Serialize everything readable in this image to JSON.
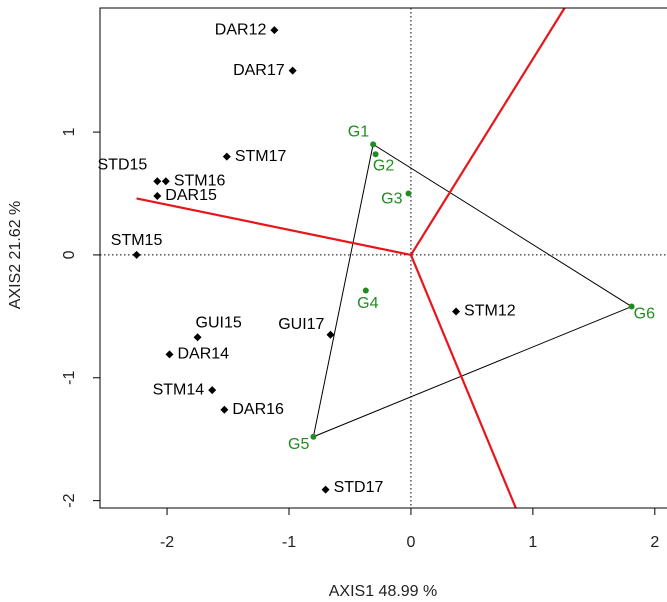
{
  "chart_data": {
    "type": "scatter",
    "xlabel": "AXIS1 48.99 %",
    "ylabel": "AXIS2 21.62 %",
    "xlim": [
      -2.55,
      2.1
    ],
    "ylim": [
      -2.06,
      2.01
    ],
    "xticks": [
      -2,
      -1,
      0,
      1,
      2
    ],
    "yticks": [
      -2,
      -1,
      0,
      1
    ],
    "series": [
      {
        "color": "#000000",
        "marker": "diamond",
        "labels": [
          "DAR12",
          "DAR17",
          "STM17",
          "STD15",
          "STM16",
          "DAR15",
          "STM15",
          "GUI15",
          "GUI17",
          "DAR14",
          "STM14",
          "DAR16",
          "STM12",
          "STD17"
        ],
        "x": [
          -1.12,
          -0.97,
          -1.51,
          -2.08,
          -2.01,
          -2.08,
          -2.25,
          -1.75,
          -0.66,
          -1.98,
          -1.63,
          -1.53,
          0.37,
          -0.7
        ],
        "values": [
          1.83,
          1.5,
          0.8,
          0.6,
          0.6,
          0.48,
          0,
          -0.67,
          -0.65,
          -0.81,
          -1.1,
          -1.26,
          -0.46,
          -1.91
        ]
      },
      {
        "color": "#228B22",
        "marker": "circle",
        "labels": [
          "G1",
          "G2",
          "G3",
          "G4",
          "G5",
          "G6"
        ],
        "x": [
          -0.31,
          -0.29,
          -0.02,
          -0.37,
          -0.8,
          1.81
        ],
        "values": [
          0.9,
          0.82,
          0.5,
          -0.29,
          -1.48,
          -0.42
        ]
      }
    ],
    "polygon": {
      "series": 1,
      "vertices": [
        0,
        5,
        4
      ],
      "color": "#000000"
    },
    "rays": {
      "color": "#e8161b",
      "x": [
        1.26,
        -2.25,
        0.86
      ],
      "values": [
        2.01,
        0.46,
        -2.06
      ]
    }
  }
}
